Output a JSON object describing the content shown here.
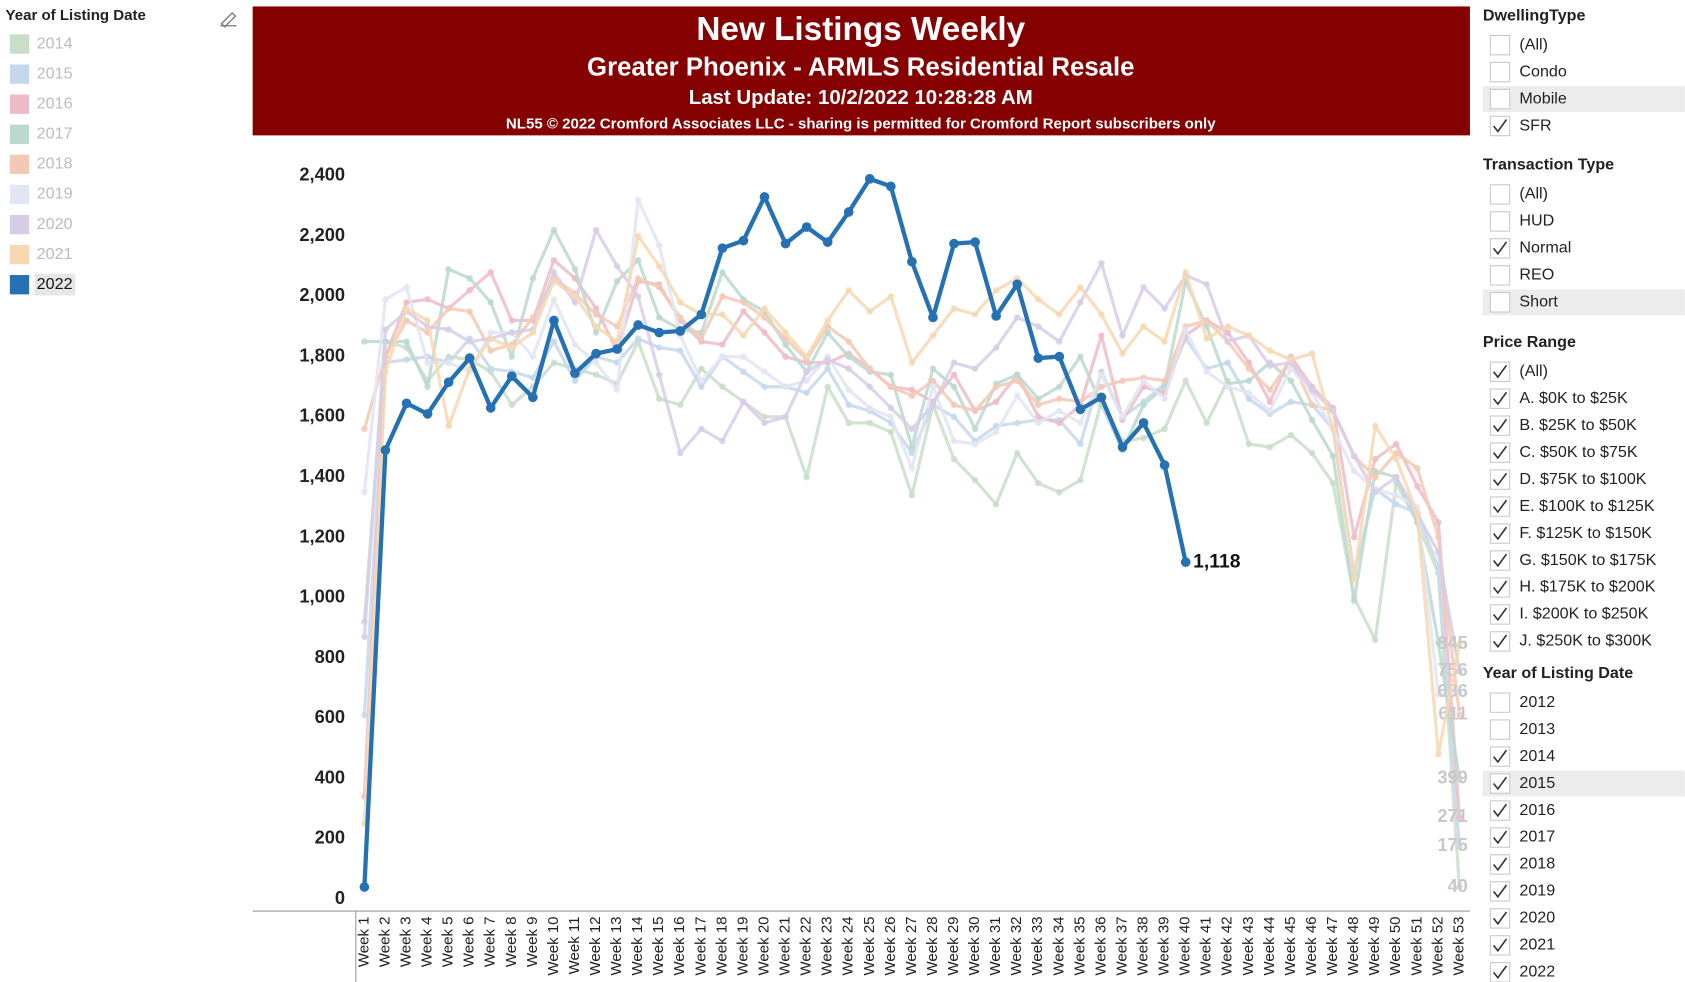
{
  "chart_data": {
    "type": "line",
    "title": "New Listings Weekly",
    "subtitle": "Greater Phoenix - ARMLS Residential Resale",
    "update_note": "Last Update: 10/2/2022 10:28:28 AM",
    "copyright_note": "NL55 © 2022 Cromford Associates LLC - sharing is permitted for Cromford Report subscribers only",
    "legend": {
      "title": "Year of Listing Date",
      "position": "left"
    },
    "categories": [
      "Week 1",
      "Week 2",
      "Week 3",
      "Week 4",
      "Week 5",
      "Week 6",
      "Week 7",
      "Week 8",
      "Week 9",
      "Week 10",
      "Week 11",
      "Week 12",
      "Week 13",
      "Week 14",
      "Week 15",
      "Week 16",
      "Week 17",
      "Week 18",
      "Week 19",
      "Week 20",
      "Week 21",
      "Week 22",
      "Week 23",
      "Week 24",
      "Week 25",
      "Week 26",
      "Week 27",
      "Week 28",
      "Week 29",
      "Week 30",
      "Week 31",
      "Week 32",
      "Week 33",
      "Week 34",
      "Week 35",
      "Week 36",
      "Week 37",
      "Week 38",
      "Week 39",
      "Week 40",
      "Week 41",
      "Week 42",
      "Week 43",
      "Week 44",
      "Week 45",
      "Week 46",
      "Week 47",
      "Week 48",
      "Week 49",
      "Week 50",
      "Week 51",
      "Week 52",
      "Week 53"
    ],
    "ylim": [
      -40,
      2520
    ],
    "yticks": [
      0,
      200,
      400,
      600,
      800,
      {
        "value": 1000,
        "label": "1,000"
      },
      {
        "value": 1200,
        "label": "1,200"
      },
      {
        "value": 1400,
        "label": "1,400"
      },
      {
        "value": 1600,
        "label": "1,600"
      },
      {
        "value": 1800,
        "label": "1,800"
      },
      {
        "value": 2000,
        "label": "2,000"
      },
      {
        "value": 2200,
        "label": "2,200"
      },
      {
        "value": 2400,
        "label": "2,400"
      }
    ],
    "grid": false,
    "series": [
      {
        "name": "2014",
        "color": "#c9dec9",
        "highlighted": false,
        "values": [
          920,
          1850,
          1830,
          1720,
          1800,
          1790,
          1750,
          1640,
          1700,
          1780,
          1760,
          1740,
          1710,
          1850,
          1660,
          1640,
          1760,
          1700,
          1650,
          1600,
          1600,
          1400,
          1700,
          1580,
          1580,
          1550,
          1340,
          1640,
          1460,
          1390,
          1310,
          1480,
          1380,
          1350,
          1390,
          1650,
          1520,
          1530,
          1560,
          1720,
          1580,
          1720,
          1510,
          1500,
          1540,
          1480,
          1380,
          1000,
          860,
          1380,
          1250,
          1080,
          40
        ]
      },
      {
        "name": "2015",
        "color": "#c4d8ec",
        "highlighted": false,
        "values": [
          610,
          1780,
          1790,
          1800,
          1780,
          1860,
          1760,
          1750,
          1730,
          1850,
          1720,
          1800,
          1780,
          1860,
          1830,
          1820,
          1700,
          1800,
          1750,
          1700,
          1700,
          1680,
          1760,
          1640,
          1620,
          1580,
          1480,
          1640,
          1600,
          1520,
          1570,
          1580,
          1590,
          1590,
          1510,
          1750,
          1600,
          1650,
          1710,
          1860,
          1760,
          1780,
          1660,
          1610,
          1650,
          1640,
          1560,
          1080,
          1360,
          1310,
          1280,
          1100,
          175
        ]
      },
      {
        "name": "2016",
        "color": "#edbcc7",
        "highlighted": false,
        "values": [
          340,
          1800,
          1980,
          1990,
          1960,
          2020,
          2080,
          1920,
          1920,
          2120,
          2060,
          1960,
          1820,
          2050,
          2040,
          1920,
          1850,
          1840,
          1950,
          1880,
          1800,
          1780,
          1780,
          1810,
          1760,
          1700,
          1690,
          1650,
          1740,
          1620,
          1650,
          1740,
          1600,
          1580,
          1640,
          1870,
          1590,
          1700,
          1680,
          1870,
          1920,
          1880,
          1780,
          1650,
          1800,
          1700,
          1630,
          1200,
          1460,
          1510,
          1370,
          1250,
          271
        ]
      },
      {
        "name": "2017",
        "color": "#bcd9cf",
        "highlighted": false,
        "values": [
          1850,
          1850,
          1850,
          1700,
          2090,
          2060,
          1980,
          1800,
          2060,
          2220,
          2090,
          1880,
          2050,
          2120,
          1930,
          1890,
          1880,
          2080,
          1990,
          1950,
          1840,
          1750,
          1880,
          1800,
          1750,
          1740,
          1500,
          1760,
          1700,
          1560,
          1710,
          1740,
          1660,
          1700,
          1800,
          1640,
          1490,
          1640,
          1700,
          2050,
          1900,
          1710,
          1720,
          1780,
          1720,
          1590,
          1470,
          990,
          1420,
          1400,
          1250,
          850,
          399
        ]
      },
      {
        "name": "2018",
        "color": "#f3c9b6",
        "highlighted": false,
        "values": [
          1560,
          1800,
          1920,
          1880,
          1960,
          1950,
          1820,
          1840,
          1930,
          2060,
          2010,
          1940,
          1900,
          2060,
          2030,
          1930,
          1860,
          2000,
          1980,
          1930,
          1860,
          1790,
          1900,
          1850,
          1760,
          1700,
          1670,
          1720,
          1640,
          1620,
          1700,
          1720,
          1640,
          1660,
          1650,
          1700,
          1720,
          1730,
          1720,
          1900,
          1920,
          1850,
          1760,
          1690,
          1790,
          1640,
          1620,
          1470,
          1400,
          1480,
          1430,
          1200,
          611
        ]
      },
      {
        "name": "2019",
        "color": "#e2e5f3",
        "highlighted": false,
        "values": [
          1350,
          1990,
          2030,
          1780,
          1780,
          1750,
          1880,
          1880,
          1800,
          1990,
          1840,
          1780,
          1690,
          2320,
          2170,
          1870,
          1720,
          1800,
          1800,
          1750,
          1700,
          1720,
          1800,
          1690,
          1630,
          1600,
          1430,
          1700,
          1520,
          1510,
          1550,
          1670,
          1580,
          1620,
          1580,
          1740,
          1600,
          1720,
          1660,
          1890,
          1750,
          1700,
          1680,
          1620,
          1760,
          1680,
          1560,
          1420,
          1360,
          1340,
          1300,
          680,
          686
        ]
      },
      {
        "name": "2020",
        "color": "#d8cde8",
        "highlighted": false,
        "values": [
          870,
          1890,
          1950,
          1900,
          1890,
          1850,
          1860,
          1880,
          1890,
          2080,
          1980,
          2220,
          2100,
          2000,
          1740,
          1480,
          1560,
          1520,
          1650,
          1580,
          1600,
          1750,
          1790,
          1760,
          1700,
          1630,
          1560,
          1640,
          1780,
          1760,
          1830,
          1930,
          1900,
          1850,
          1980,
          2110,
          1870,
          2030,
          1960,
          2070,
          2040,
          1850,
          1870,
          1770,
          1780,
          1690,
          1620,
          1470,
          1350,
          1400,
          1280,
          1150,
          756
        ]
      },
      {
        "name": "2021",
        "color": "#f6d8b3",
        "highlighted": false,
        "values": [
          250,
          1750,
          1960,
          1920,
          1570,
          1760,
          1860,
          1830,
          1880,
          2050,
          2000,
          1900,
          1850,
          2200,
          2100,
          1980,
          1940,
          1940,
          1870,
          1960,
          1880,
          1800,
          1920,
          2020,
          1950,
          2000,
          1780,
          1870,
          1960,
          1940,
          2020,
          2060,
          1990,
          1940,
          2030,
          1940,
          1810,
          1900,
          1850,
          2080,
          1860,
          1900,
          1870,
          1820,
          1790,
          1810,
          1560,
          1060,
          1570,
          1460,
          1280,
          480,
          845
        ]
      },
      {
        "name": "2022",
        "color": "#2571b4",
        "highlighted": true,
        "values": [
          40,
          1490,
          1645,
          1610,
          1715,
          1795,
          1630,
          1735,
          1665,
          1920,
          1745,
          1810,
          1825,
          1905,
          1880,
          1885,
          1940,
          2160,
          2185,
          2330,
          2175,
          2230,
          2180,
          2280,
          2390,
          2365,
          2115,
          1930,
          2175,
          2180,
          1935,
          2040,
          1795,
          1800,
          1625,
          1665,
          1500,
          1580,
          1440,
          1118,
          null,
          null,
          null,
          null,
          null,
          null,
          null,
          null,
          null,
          null,
          null,
          null,
          null
        ],
        "value_labels": [
          null,
          null,
          null,
          null,
          null,
          null,
          null,
          null,
          null,
          null,
          null,
          null,
          null,
          null,
          null,
          null,
          null,
          null,
          null,
          null,
          null,
          null,
          null,
          null,
          null,
          null,
          null,
          null,
          null,
          null,
          null,
          null,
          null,
          null,
          null,
          null,
          null,
          null,
          null,
          "1,118",
          null,
          null,
          null,
          null,
          null,
          null,
          null,
          null,
          null,
          null,
          null,
          null,
          null
        ]
      }
    ]
  },
  "filters": [
    {
      "title": "DwellingType",
      "items": [
        {
          "label": "(All)",
          "checked": false
        },
        {
          "label": "Condo",
          "checked": false
        },
        {
          "label": "Mobile",
          "checked": false,
          "hover": true
        },
        {
          "label": "SFR",
          "checked": true
        }
      ]
    },
    {
      "title": "Transaction Type",
      "items": [
        {
          "label": "(All)",
          "checked": false
        },
        {
          "label": "HUD",
          "checked": false
        },
        {
          "label": "Normal",
          "checked": true
        },
        {
          "label": "REO",
          "checked": false
        },
        {
          "label": "Short",
          "checked": false,
          "hover": true
        }
      ]
    },
    {
      "title": "Price Range",
      "items": [
        {
          "label": "(All)",
          "checked": true
        },
        {
          "label": "A. $0K to $25K",
          "checked": true
        },
        {
          "label": "B. $25K to $50K",
          "checked": true
        },
        {
          "label": "C. $50K to $75K",
          "checked": true
        },
        {
          "label": "D. $75K to $100K",
          "checked": true
        },
        {
          "label": "E. $100K to $125K",
          "checked": true
        },
        {
          "label": "F. $125K to $150K",
          "checked": true
        },
        {
          "label": "G. $150K to $175K",
          "checked": true
        },
        {
          "label": "H. $175K to $200K",
          "checked": true
        },
        {
          "label": "I. $200K to $250K",
          "checked": true
        },
        {
          "label": "J. $250K to $300K",
          "checked": true
        }
      ]
    },
    {
      "title": "Year of Listing Date",
      "items": [
        {
          "label": "2012",
          "checked": false
        },
        {
          "label": "2013",
          "checked": false
        },
        {
          "label": "2014",
          "checked": true
        },
        {
          "label": "2015",
          "checked": true,
          "hover": true
        },
        {
          "label": "2016",
          "checked": true
        },
        {
          "label": "2017",
          "checked": true
        },
        {
          "label": "2018",
          "checked": true
        },
        {
          "label": "2019",
          "checked": true
        },
        {
          "label": "2020",
          "checked": true
        },
        {
          "label": "2021",
          "checked": true
        },
        {
          "label": "2022",
          "checked": true
        }
      ]
    }
  ]
}
